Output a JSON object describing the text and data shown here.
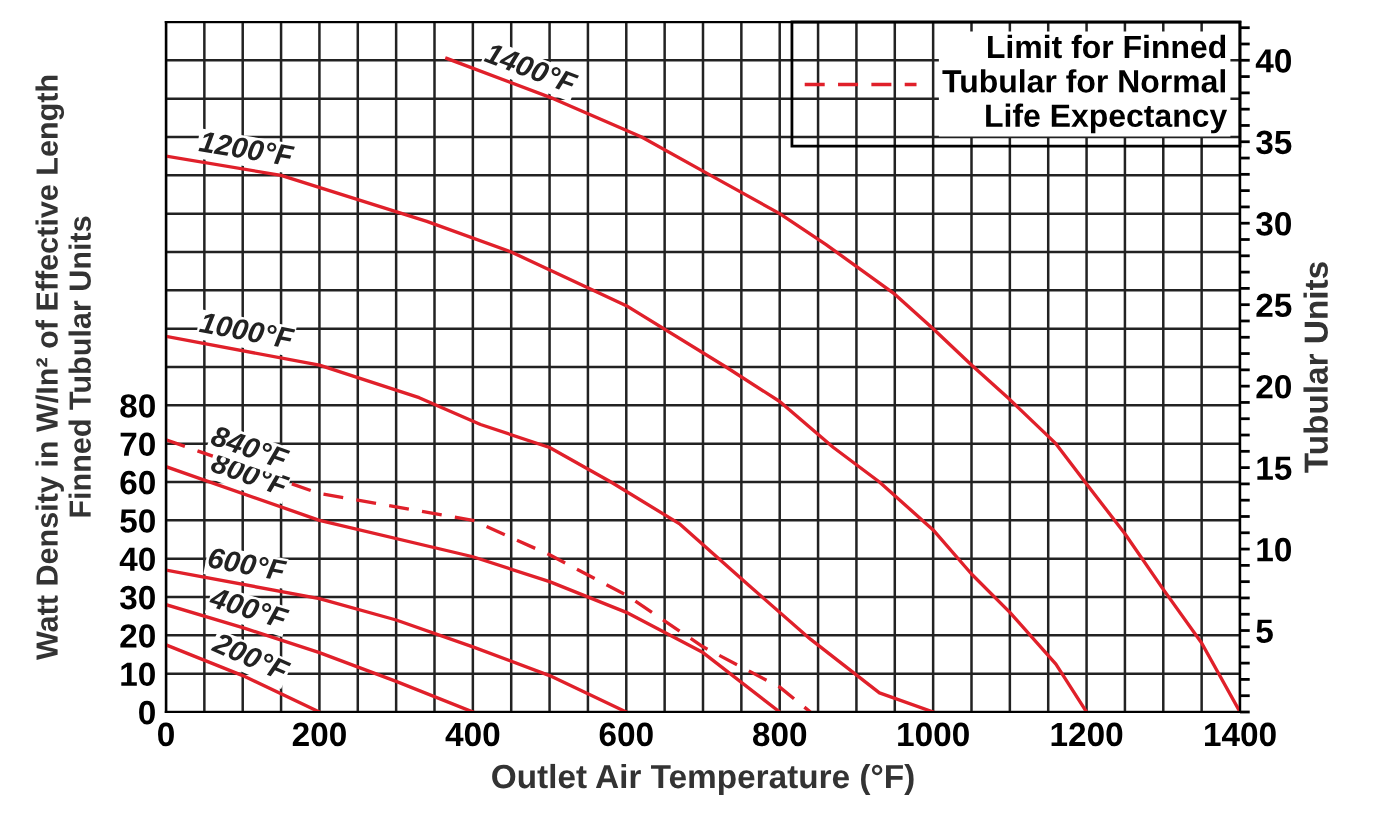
{
  "chart_data": {
    "type": "line",
    "xlabel": "Outlet Air Temperature (°F)",
    "ylabel": "Watt Density in W/In² of Effective Length\nFinned Tubular Units",
    "y2label": "Tubular Units",
    "xlim": [
      0,
      1400
    ],
    "ylim": [
      0,
      180
    ],
    "y2lim": [
      0,
      42.35
    ],
    "xticks": [
      0,
      {
        "value": 50,
        "label": null
      },
      {
        "value": 100,
        "label": null
      },
      {
        "value": 150,
        "label": null
      },
      200,
      {
        "value": 250,
        "label": null
      },
      {
        "value": 300,
        "label": null
      },
      {
        "value": 350,
        "label": null
      },
      400,
      {
        "value": 450,
        "label": null
      },
      {
        "value": 500,
        "label": null
      },
      {
        "value": 550,
        "label": null
      },
      600,
      {
        "value": 650,
        "label": null
      },
      {
        "value": 700,
        "label": null
      },
      {
        "value": 750,
        "label": null
      },
      800,
      {
        "value": 850,
        "label": null
      },
      {
        "value": 900,
        "label": null
      },
      {
        "value": 950,
        "label": null
      },
      1000,
      {
        "value": 1050,
        "label": null
      },
      {
        "value": 1100,
        "label": null
      },
      {
        "value": 1150,
        "label": null
      },
      1200,
      {
        "value": 1250,
        "label": null
      },
      {
        "value": 1300,
        "label": null
      },
      {
        "value": 1350,
        "label": null
      },
      1400
    ],
    "yticks": [
      0,
      10,
      20,
      30,
      40,
      50,
      60,
      70,
      80,
      {
        "value": 90,
        "label": null
      },
      {
        "value": 100,
        "label": null
      },
      {
        "value": 110,
        "label": null
      },
      {
        "value": 120,
        "label": null
      },
      {
        "value": 130,
        "label": null
      },
      {
        "value": 140,
        "label": null
      },
      {
        "value": 150,
        "label": null
      },
      {
        "value": 160,
        "label": null
      },
      {
        "value": 170,
        "label": null
      },
      {
        "value": 180,
        "label": null
      }
    ],
    "y2ticks": [
      {
        "value": 0,
        "label": null
      },
      {
        "value": 1,
        "label": null
      },
      {
        "value": 2,
        "label": null
      },
      {
        "value": 3,
        "label": null
      },
      {
        "value": 4,
        "label": null
      },
      5,
      {
        "value": 6,
        "label": null
      },
      {
        "value": 7,
        "label": null
      },
      {
        "value": 8,
        "label": null
      },
      {
        "value": 9,
        "label": null
      },
      10,
      {
        "value": 11,
        "label": null
      },
      {
        "value": 12,
        "label": null
      },
      {
        "value": 13,
        "label": null
      },
      {
        "value": 14,
        "label": null
      },
      15,
      {
        "value": 16,
        "label": null
      },
      {
        "value": 17,
        "label": null
      },
      {
        "value": 18,
        "label": null
      },
      {
        "value": 19,
        "label": null
      },
      20,
      {
        "value": 21,
        "label": null
      },
      {
        "value": 22,
        "label": null
      },
      {
        "value": 23,
        "label": null
      },
      {
        "value": 24,
        "label": null
      },
      25,
      {
        "value": 26,
        "label": null
      },
      {
        "value": 27,
        "label": null
      },
      {
        "value": 28,
        "label": null
      },
      {
        "value": 29,
        "label": null
      },
      30,
      {
        "value": 31,
        "label": null
      },
      {
        "value": 32,
        "label": null
      },
      {
        "value": 33,
        "label": null
      },
      {
        "value": 34,
        "label": null
      },
      35,
      {
        "value": 36,
        "label": null
      },
      {
        "value": 37,
        "label": null
      },
      {
        "value": 38,
        "label": null
      },
      {
        "value": 39,
        "label": null
      },
      40,
      {
        "value": 41,
        "label": null
      },
      {
        "value": 42,
        "label": null
      }
    ],
    "grid": true,
    "legend": "top right",
    "marker": "none",
    "series": [
      {
        "color": "#e0202a",
        "line_style": "solid",
        "x": [
          0,
          100,
          200
        ],
        "values": [
          17.5,
          9.5,
          0
        ]
      },
      {
        "color": "#e0202a",
        "line_style": "solid",
        "x": [
          0,
          100,
          200,
          300,
          400
        ],
        "values": [
          28,
          22,
          15.5,
          8,
          0
        ]
      },
      {
        "color": "#e0202a",
        "line_style": "solid",
        "x": [
          0,
          200,
          300,
          400,
          500,
          600
        ],
        "values": [
          37,
          29.6,
          24,
          17,
          9.5,
          0
        ]
      },
      {
        "color": "#e0202a",
        "line_style": "solid",
        "x": [
          0,
          200,
          400,
          500,
          600,
          700,
          800
        ],
        "values": [
          64,
          50,
          40.5,
          34,
          26,
          15.5,
          0
        ]
      },
      {
        "name": "Limit for Finned\nTubular for Normal\nLife Expectancy",
        "color": "#e0202a",
        "line_style": "dashed",
        "x": [
          0,
          200,
          400,
          500,
          600,
          700,
          800,
          840
        ],
        "values": [
          71,
          57,
          50,
          41,
          30.5,
          17,
          6.5,
          0
        ]
      },
      {
        "color": "#e0202a",
        "line_style": "solid",
        "x": [
          0,
          200,
          330,
          410,
          500,
          580,
          670,
          760,
          840,
          930,
          1000
        ],
        "values": [
          98,
          90.5,
          82,
          75,
          69,
          60,
          49,
          33,
          19,
          5,
          0
        ]
      },
      {
        "color": "#e0202a",
        "line_style": "solid",
        "x": [
          0,
          150,
          340,
          450,
          600,
          730,
          800,
          870,
          930,
          1000,
          1050,
          1100,
          1160,
          1200
        ],
        "values": [
          145,
          140,
          128,
          120,
          106,
          90,
          81,
          69,
          60,
          47.5,
          36,
          26,
          12.5,
          0
        ]
      },
      {
        "color": "#e0202a",
        "line_style": "solid",
        "x": [
          366,
          505,
          620,
          710,
          800,
          860,
          950,
          1000,
          1050,
          1100,
          1160,
          1200,
          1250,
          1300,
          1350,
          1400
        ],
        "values": [
          170.5,
          160,
          150,
          140,
          130,
          122,
          109,
          100,
          90.5,
          81.5,
          70,
          59.5,
          46.5,
          32,
          18,
          0
        ]
      }
    ],
    "annotations": [
      "200°F",
      "400°F",
      "600°F",
      "800°F",
      "840°F",
      "1000°F",
      "1200°F",
      "1400°F"
    ]
  }
}
